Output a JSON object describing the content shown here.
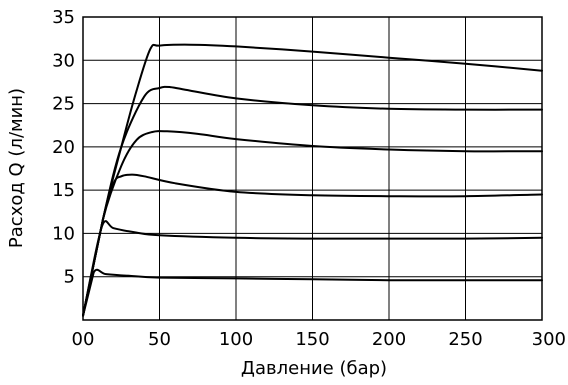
{
  "chart_data": {
    "type": "line",
    "xlabel": "Давление (бар)",
    "ylabel": "Расход Q (л/мин)",
    "xlim": [
      0,
      300
    ],
    "ylim": [
      0,
      35
    ],
    "xticks": [
      0,
      50,
      100,
      150,
      200,
      250,
      300
    ],
    "yticks": [
      5,
      10,
      15,
      20,
      25,
      30,
      35
    ],
    "xtick_labels": [
      "00",
      "50",
      "100",
      "150",
      "200",
      "250",
      "300"
    ],
    "ytick_labels": [
      "5",
      "10",
      "15",
      "20",
      "25",
      "30",
      "35"
    ],
    "grid": true,
    "legend": "none",
    "series": [
      {
        "x": [
          0,
          7,
          15,
          30,
          50,
          100,
          150,
          200,
          250,
          300
        ],
        "y": [
          0.5,
          5.5,
          5.3,
          5.1,
          4.9,
          4.8,
          4.7,
          4.6,
          4.6,
          4.6
        ]
      },
      {
        "x": [
          0,
          5,
          13,
          20,
          35,
          50,
          100,
          150,
          200,
          250,
          300
        ],
        "y": [
          0.5,
          5.0,
          11.1,
          10.6,
          10.1,
          9.8,
          9.5,
          9.4,
          9.4,
          9.4,
          9.5
        ]
      },
      {
        "x": [
          0,
          13,
          20,
          25,
          32,
          40,
          60,
          100,
          150,
          200,
          250,
          300
        ],
        "y": [
          0.5,
          11.6,
          15.8,
          16.6,
          16.8,
          16.6,
          15.8,
          14.8,
          14.4,
          14.3,
          14.3,
          14.5
        ]
      },
      {
        "x": [
          0,
          13,
          25,
          35,
          45,
          55,
          75,
          100,
          150,
          200,
          250,
          300
        ],
        "y": [
          0.5,
          11.6,
          17.8,
          20.8,
          21.7,
          21.8,
          21.5,
          20.9,
          20.1,
          19.7,
          19.5,
          19.5
        ]
      },
      {
        "x": [
          0,
          13,
          25,
          40,
          50,
          57,
          70,
          100,
          150,
          200,
          250,
          300
        ],
        "y": [
          0.5,
          11.6,
          20.0,
          25.8,
          26.8,
          26.9,
          26.5,
          25.6,
          24.8,
          24.4,
          24.3,
          24.3
        ]
      },
      {
        "x": [
          0,
          13,
          25,
          35,
          44,
          50,
          70,
          100,
          150,
          200,
          250,
          300
        ],
        "y": [
          0.5,
          11.6,
          20.0,
          26.5,
          31.3,
          31.7,
          31.8,
          31.6,
          31.0,
          30.3,
          29.6,
          28.8
        ]
      }
    ]
  }
}
